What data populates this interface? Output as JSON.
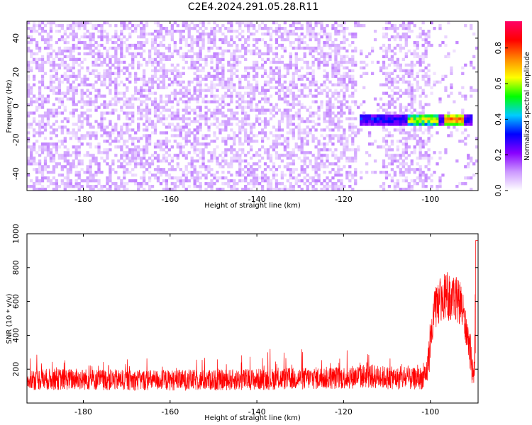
{
  "title": "C2E4.2024.291.05.28.R11",
  "chart_data": [
    {
      "type": "heatmap",
      "xlabel": "Height of straight line (km)",
      "ylabel": "Frequency (Hz)",
      "xlim": [
        -193,
        -89
      ],
      "ylim": [
        -50,
        50
      ],
      "xticks": [
        -180,
        -160,
        -140,
        -120,
        -100
      ],
      "yticks": [
        -40,
        -20,
        0,
        20,
        40
      ],
      "grid": false,
      "colorbar": {
        "label": "Normalized spectral amplitude",
        "range": [
          0,
          0.95
        ],
        "ticks": [
          0.0,
          0.2,
          0.4,
          0.6,
          0.8
        ],
        "colors": [
          "#ffffff",
          "#cc99ff",
          "#8800ff",
          "#0000ff",
          "#00ccff",
          "#00ff00",
          "#ffff00",
          "#ff8800",
          "#ff0000",
          "#ff0066"
        ]
      },
      "signal": {
        "x_start": -116,
        "x_end": -90,
        "frequency": -8,
        "peak_x": [
          -101,
          -94
        ],
        "peak_amplitude": 0.9
      }
    },
    {
      "type": "line",
      "xlabel": "Height of straight line (km)",
      "ylabel": "SNR (10 * v/v)",
      "xlim": [
        -193,
        -89
      ],
      "ylim": [
        0,
        1000
      ],
      "xticks": [
        -180,
        -160,
        -140,
        -120,
        -100
      ],
      "yticks": [
        200,
        400,
        600,
        800,
        1000
      ],
      "color": "#ff0000",
      "grid": false,
      "series": [
        {
          "x": [
            -193,
            -180,
            -170,
            -160,
            -150,
            -140,
            -130,
            -120,
            -115,
            -110,
            -105,
            -101,
            -99,
            -97,
            -95,
            -93,
            -91,
            -90,
            -89.2
          ],
          "y": [
            140,
            140,
            135,
            135,
            135,
            140,
            145,
            150,
            160,
            150,
            140,
            150,
            550,
            640,
            620,
            600,
            330,
            120,
            960
          ]
        }
      ]
    }
  ]
}
